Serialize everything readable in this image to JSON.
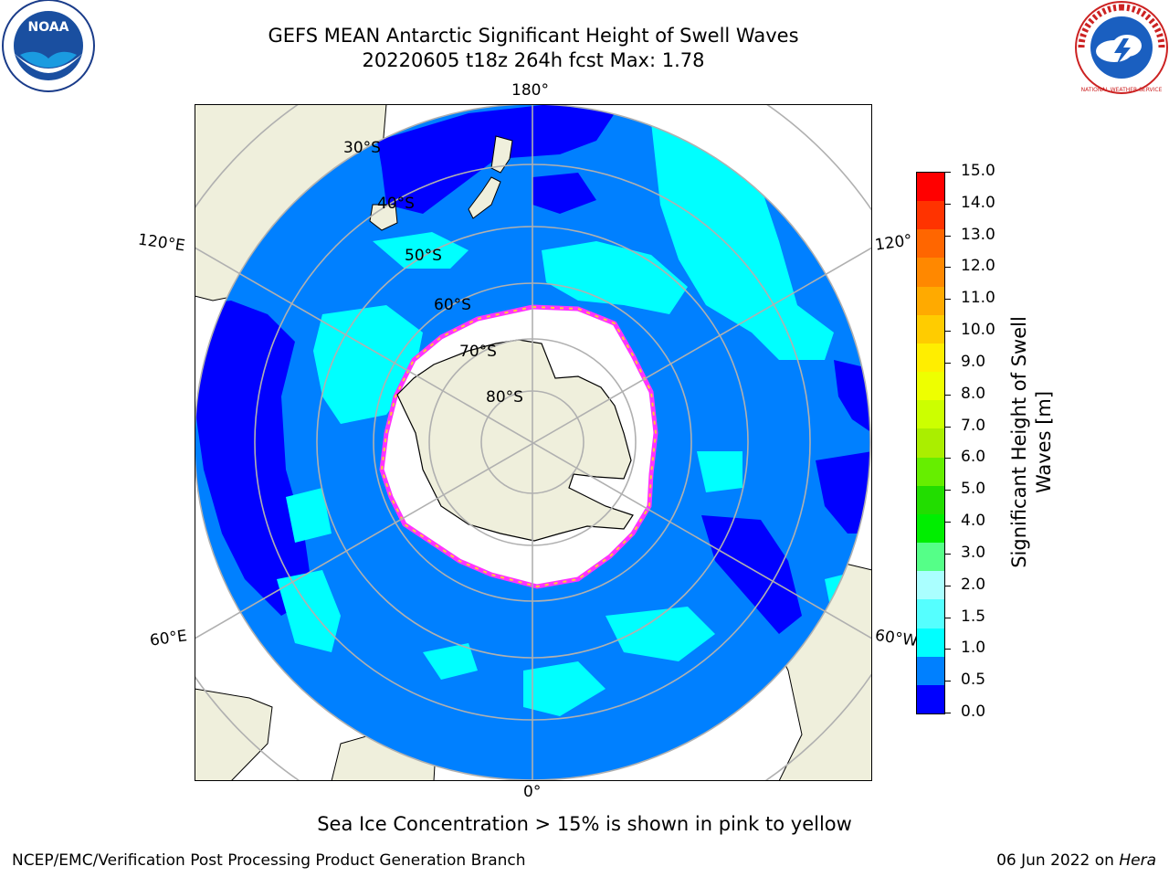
{
  "title": {
    "line1": "GEFS MEAN Antarctic Significant Height of Swell Waves",
    "line2": "20220605 t18z 264h fcst   Max: 1.78"
  },
  "map": {
    "projection": "south-polar-stereographic",
    "longitude_labels": {
      "top": "180°",
      "left_upper": "120°E",
      "right_upper": "120°",
      "left_lower": "60°E",
      "right_lower": "60°W",
      "bottom": "0°"
    },
    "latitude_labels": [
      "30°S",
      "40°S",
      "50°S",
      "60°S",
      "70°S",
      "80°S"
    ],
    "colors": {
      "land": "#efefdc",
      "ocean_default": "#0080ff",
      "ocean_low": "#0000ff",
      "ocean_mid": "#00ffff",
      "ice": "#ffffff",
      "ice_edge_pink": "#ff33ff",
      "ice_edge_yellow": "#ffcc33",
      "grid": "#b0b0b0"
    }
  },
  "colorbar": {
    "label_line1": "Significant Height of Swell",
    "label_line2": "Waves [m]",
    "ticks": [
      "15.0",
      "14.0",
      "13.0",
      "12.0",
      "11.0",
      "10.0",
      "9.0",
      "8.0",
      "7.0",
      "6.0",
      "5.0",
      "4.0",
      "3.0",
      "2.0",
      "1.5",
      "1.0",
      "0.5",
      "0.0"
    ],
    "colors_top_to_bottom": [
      "#ff0000",
      "#ff3300",
      "#ff6600",
      "#ff8800",
      "#ffaa00",
      "#ffcc00",
      "#ffee00",
      "#eeff00",
      "#ccff00",
      "#aaee00",
      "#66ee00",
      "#22dd00",
      "#00ee00",
      "#55ff88",
      "#aaffff",
      "#55ffff",
      "#00ffff",
      "#0080ff",
      "#0000ff"
    ]
  },
  "note": "Sea Ice Concentration > 15% is shown in pink to yellow",
  "footer": {
    "left": "NCEP/EMC/Verification Post Processing Product Generation Branch",
    "right_prefix": "06 Jun 2022 on ",
    "right_host": "Hera"
  },
  "logos": {
    "left": "NOAA",
    "right": "NATIONAL WEATHER SERVICE"
  }
}
